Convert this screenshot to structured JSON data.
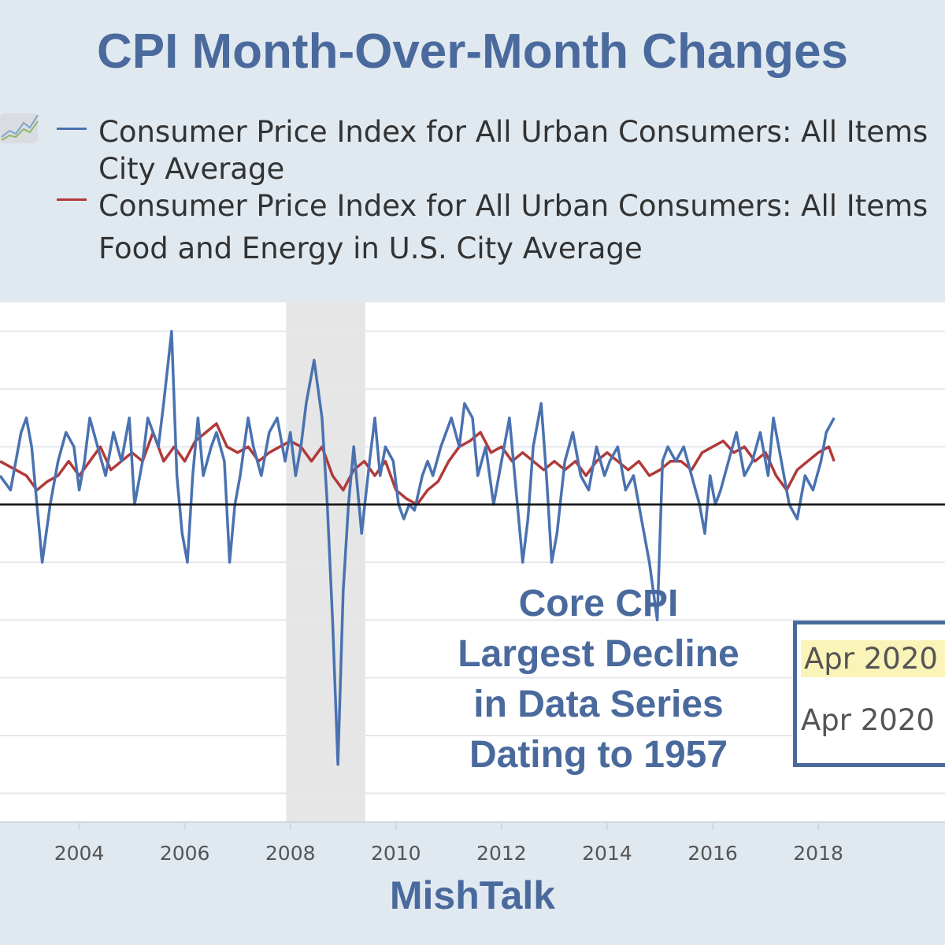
{
  "header": {
    "title": "CPI Month-Over-Month Changes"
  },
  "legend": {
    "items": [
      {
        "line1": "Consumer Price Index for All Urban Consumers: All Items",
        "line2": "City Average",
        "color": "#4a72b0"
      },
      {
        "line1": "Consumer Price Index for All Urban Consumers: All Items",
        "line2": "Food and Energy in U.S. City Average",
        "color": "#b03a3a"
      }
    ],
    "icon": "line-chart-icon"
  },
  "annotation": {
    "lines": [
      "Core CPI",
      "Largest Decline",
      "in Data Series",
      "Dating to 1957"
    ]
  },
  "tooltip": {
    "row1": "Apr 2020 -",
    "row2": "Apr 2020 -"
  },
  "footer": {
    "source": "MishTalk"
  },
  "chart_data": {
    "type": "line",
    "x_ticks": [
      "2004",
      "2006",
      "2008",
      "2010",
      "2012",
      "2014",
      "2016",
      "2018"
    ],
    "xlim": [
      2002.5,
      2020.4
    ],
    "ylim": [
      -1.1,
      0.7
    ],
    "zero_line": true,
    "grid": "horizontal",
    "recession_shading": [
      [
        2007.92,
        2009.42
      ]
    ],
    "series": [
      {
        "color": "#4a72b0",
        "points": [
          [
            2002.5,
            0.1
          ],
          [
            2002.7,
            0.05
          ],
          [
            2002.9,
            0.25
          ],
          [
            2003.0,
            0.3
          ],
          [
            2003.1,
            0.2
          ],
          [
            2003.2,
            0.0
          ],
          [
            2003.3,
            -0.2
          ],
          [
            2003.45,
            0.0
          ],
          [
            2003.6,
            0.15
          ],
          [
            2003.75,
            0.25
          ],
          [
            2003.9,
            0.2
          ],
          [
            2004.0,
            0.05
          ],
          [
            2004.1,
            0.15
          ],
          [
            2004.2,
            0.3
          ],
          [
            2004.35,
            0.2
          ],
          [
            2004.5,
            0.1
          ],
          [
            2004.65,
            0.25
          ],
          [
            2004.8,
            0.15
          ],
          [
            2004.95,
            0.3
          ],
          [
            2005.05,
            0.0
          ],
          [
            2005.2,
            0.15
          ],
          [
            2005.3,
            0.3
          ],
          [
            2005.5,
            0.2
          ],
          [
            2005.6,
            0.35
          ],
          [
            2005.75,
            0.6
          ],
          [
            2005.85,
            0.1
          ],
          [
            2005.95,
            -0.1
          ],
          [
            2006.05,
            -0.2
          ],
          [
            2006.15,
            0.1
          ],
          [
            2006.25,
            0.3
          ],
          [
            2006.35,
            0.1
          ],
          [
            2006.5,
            0.2
          ],
          [
            2006.6,
            0.25
          ],
          [
            2006.75,
            0.15
          ],
          [
            2006.85,
            -0.2
          ],
          [
            2006.95,
            0.0
          ],
          [
            2007.05,
            0.1
          ],
          [
            2007.2,
            0.3
          ],
          [
            2007.3,
            0.2
          ],
          [
            2007.45,
            0.1
          ],
          [
            2007.6,
            0.25
          ],
          [
            2007.75,
            0.3
          ],
          [
            2007.9,
            0.15
          ],
          [
            2008.0,
            0.25
          ],
          [
            2008.1,
            0.1
          ],
          [
            2008.2,
            0.2
          ],
          [
            2008.3,
            0.35
          ],
          [
            2008.45,
            0.5
          ],
          [
            2008.6,
            0.3
          ],
          [
            2008.7,
            0.0
          ],
          [
            2008.8,
            -0.4
          ],
          [
            2008.9,
            -0.9
          ],
          [
            2009.0,
            -0.3
          ],
          [
            2009.1,
            0.0
          ],
          [
            2009.2,
            0.2
          ],
          [
            2009.35,
            -0.1
          ],
          [
            2009.5,
            0.15
          ],
          [
            2009.6,
            0.3
          ],
          [
            2009.7,
            0.1
          ],
          [
            2009.8,
            0.2
          ],
          [
            2009.95,
            0.15
          ],
          [
            2010.05,
            0.0
          ],
          [
            2010.15,
            -0.05
          ],
          [
            2010.25,
            0.0
          ],
          [
            2010.35,
            -0.02
          ],
          [
            2010.5,
            0.1
          ],
          [
            2010.6,
            0.15
          ],
          [
            2010.7,
            0.1
          ],
          [
            2010.85,
            0.2
          ],
          [
            2010.95,
            0.25
          ],
          [
            2011.05,
            0.3
          ],
          [
            2011.2,
            0.2
          ],
          [
            2011.3,
            0.35
          ],
          [
            2011.45,
            0.3
          ],
          [
            2011.55,
            0.1
          ],
          [
            2011.7,
            0.2
          ],
          [
            2011.85,
            0.0
          ],
          [
            2011.95,
            0.1
          ],
          [
            2012.05,
            0.2
          ],
          [
            2012.15,
            0.3
          ],
          [
            2012.3,
            0.0
          ],
          [
            2012.4,
            -0.2
          ],
          [
            2012.5,
            -0.05
          ],
          [
            2012.6,
            0.2
          ],
          [
            2012.75,
            0.35
          ],
          [
            2012.85,
            0.1
          ],
          [
            2012.95,
            -0.2
          ],
          [
            2013.05,
            -0.1
          ],
          [
            2013.2,
            0.15
          ],
          [
            2013.35,
            0.25
          ],
          [
            2013.5,
            0.1
          ],
          [
            2013.65,
            0.05
          ],
          [
            2013.8,
            0.2
          ],
          [
            2013.95,
            0.1
          ],
          [
            2014.05,
            0.15
          ],
          [
            2014.2,
            0.2
          ],
          [
            2014.35,
            0.05
          ],
          [
            2014.5,
            0.1
          ],
          [
            2014.65,
            -0.05
          ],
          [
            2014.8,
            -0.2
          ],
          [
            2014.95,
            -0.4
          ],
          [
            2015.05,
            0.15
          ],
          [
            2015.15,
            0.2
          ],
          [
            2015.3,
            0.15
          ],
          [
            2015.45,
            0.2
          ],
          [
            2015.6,
            0.1
          ],
          [
            2015.75,
            0.0
          ],
          [
            2015.85,
            -0.1
          ],
          [
            2015.95,
            0.1
          ],
          [
            2016.05,
            0.0
          ],
          [
            2016.15,
            0.05
          ],
          [
            2016.3,
            0.15
          ],
          [
            2016.45,
            0.25
          ],
          [
            2016.6,
            0.1
          ],
          [
            2016.75,
            0.15
          ],
          [
            2016.9,
            0.25
          ],
          [
            2017.05,
            0.1
          ],
          [
            2017.15,
            0.3
          ],
          [
            2017.3,
            0.15
          ],
          [
            2017.45,
            0.0
          ],
          [
            2017.6,
            -0.05
          ],
          [
            2017.75,
            0.1
          ],
          [
            2017.9,
            0.05
          ],
          [
            2018.05,
            0.15
          ],
          [
            2018.15,
            0.25
          ],
          [
            2018.3,
            0.3
          ]
        ]
      },
      {
        "color": "#b03a3a",
        "points": [
          [
            2002.5,
            0.15
          ],
          [
            2002.8,
            0.12
          ],
          [
            2003.0,
            0.1
          ],
          [
            2003.2,
            0.05
          ],
          [
            2003.4,
            0.08
          ],
          [
            2003.6,
            0.1
          ],
          [
            2003.8,
            0.15
          ],
          [
            2004.0,
            0.1
          ],
          [
            2004.2,
            0.15
          ],
          [
            2004.4,
            0.2
          ],
          [
            2004.6,
            0.12
          ],
          [
            2004.8,
            0.15
          ],
          [
            2005.0,
            0.18
          ],
          [
            2005.2,
            0.15
          ],
          [
            2005.4,
            0.25
          ],
          [
            2005.6,
            0.15
          ],
          [
            2005.8,
            0.2
          ],
          [
            2006.0,
            0.15
          ],
          [
            2006.2,
            0.22
          ],
          [
            2006.4,
            0.25
          ],
          [
            2006.6,
            0.28
          ],
          [
            2006.8,
            0.2
          ],
          [
            2007.0,
            0.18
          ],
          [
            2007.2,
            0.2
          ],
          [
            2007.4,
            0.15
          ],
          [
            2007.6,
            0.18
          ],
          [
            2007.8,
            0.2
          ],
          [
            2008.0,
            0.22
          ],
          [
            2008.2,
            0.2
          ],
          [
            2008.4,
            0.15
          ],
          [
            2008.6,
            0.2
          ],
          [
            2008.8,
            0.1
          ],
          [
            2009.0,
            0.05
          ],
          [
            2009.2,
            0.12
          ],
          [
            2009.4,
            0.15
          ],
          [
            2009.6,
            0.1
          ],
          [
            2009.8,
            0.15
          ],
          [
            2010.0,
            0.05
          ],
          [
            2010.2,
            0.02
          ],
          [
            2010.4,
            0.0
          ],
          [
            2010.6,
            0.05
          ],
          [
            2010.8,
            0.08
          ],
          [
            2011.0,
            0.15
          ],
          [
            2011.2,
            0.2
          ],
          [
            2011.4,
            0.22
          ],
          [
            2011.6,
            0.25
          ],
          [
            2011.8,
            0.18
          ],
          [
            2012.0,
            0.2
          ],
          [
            2012.2,
            0.15
          ],
          [
            2012.4,
            0.18
          ],
          [
            2012.6,
            0.15
          ],
          [
            2012.8,
            0.12
          ],
          [
            2013.0,
            0.15
          ],
          [
            2013.2,
            0.12
          ],
          [
            2013.4,
            0.15
          ],
          [
            2013.6,
            0.1
          ],
          [
            2013.8,
            0.15
          ],
          [
            2014.0,
            0.18
          ],
          [
            2014.2,
            0.15
          ],
          [
            2014.4,
            0.12
          ],
          [
            2014.6,
            0.15
          ],
          [
            2014.8,
            0.1
          ],
          [
            2015.0,
            0.12
          ],
          [
            2015.2,
            0.15
          ],
          [
            2015.4,
            0.15
          ],
          [
            2015.6,
            0.12
          ],
          [
            2015.8,
            0.18
          ],
          [
            2016.0,
            0.2
          ],
          [
            2016.2,
            0.22
          ],
          [
            2016.4,
            0.18
          ],
          [
            2016.6,
            0.2
          ],
          [
            2016.8,
            0.15
          ],
          [
            2017.0,
            0.18
          ],
          [
            2017.2,
            0.1
          ],
          [
            2017.4,
            0.05
          ],
          [
            2017.6,
            0.12
          ],
          [
            2017.8,
            0.15
          ],
          [
            2018.0,
            0.18
          ],
          [
            2018.2,
            0.2
          ],
          [
            2018.3,
            0.15
          ]
        ]
      }
    ]
  }
}
